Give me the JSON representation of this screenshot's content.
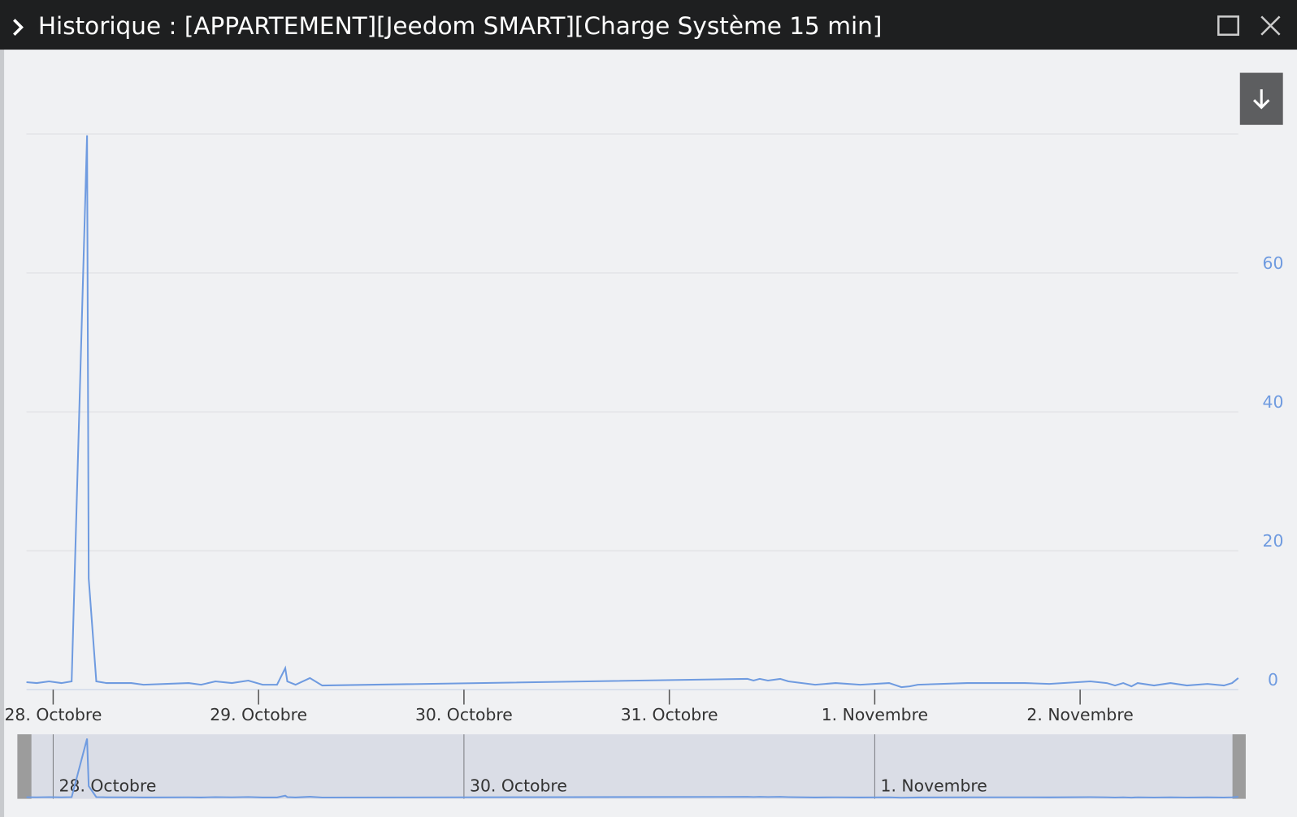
{
  "header": {
    "title": "Historique : [APPARTEMENT][Jeedom SMART][Charge Système 15 min]"
  },
  "chart_data": {
    "type": "line",
    "x": [
      -0.13,
      -0.08,
      -0.02,
      0.04,
      0.09,
      0.165,
      0.173,
      0.21,
      0.26,
      0.38,
      0.44,
      0.66,
      0.72,
      0.79,
      0.87,
      0.95,
      1.02,
      1.09,
      1.13,
      1.14,
      1.18,
      1.25,
      1.31,
      3.38,
      3.41,
      3.44,
      3.48,
      3.54,
      3.58,
      3.71,
      3.81,
      3.93,
      4.07,
      4.13,
      4.17,
      4.21,
      4.45,
      4.73,
      4.85,
      5.05,
      5.13,
      5.17,
      5.21,
      5.25,
      5.28,
      5.36,
      5.44,
      5.52,
      5.62,
      5.7,
      5.74,
      5.77
    ],
    "values": [
      1.07,
      0.95,
      1.19,
      0.95,
      1.19,
      79.8,
      16.0,
      1.19,
      0.95,
      0.95,
      0.71,
      0.95,
      0.71,
      1.19,
      0.95,
      1.31,
      0.71,
      0.71,
      3.1,
      1.19,
      0.71,
      1.67,
      0.6,
      1.55,
      1.31,
      1.55,
      1.31,
      1.55,
      1.19,
      0.71,
      0.95,
      0.71,
      0.95,
      0.36,
      0.48,
      0.71,
      0.95,
      0.95,
      0.83,
      1.19,
      0.95,
      0.6,
      0.95,
      0.48,
      0.95,
      0.6,
      0.95,
      0.6,
      0.83,
      0.6,
      0.95,
      1.67
    ],
    "color": "#6f9be0",
    "xlim": [
      -0.13,
      5.77
    ],
    "xticks": [
      {
        "value": 0,
        "label": "28. Octobre"
      },
      {
        "value": 1,
        "label": "29. Octobre"
      },
      {
        "value": 2,
        "label": "30. Octobre"
      },
      {
        "value": 3,
        "label": "31. Octobre"
      },
      {
        "value": 4,
        "label": "1. Novembre"
      },
      {
        "value": 5,
        "label": "2. Novembre"
      }
    ],
    "ylim": [
      0,
      80
    ],
    "yticks": [
      0,
      20,
      40,
      60
    ],
    "grid": true
  }
}
